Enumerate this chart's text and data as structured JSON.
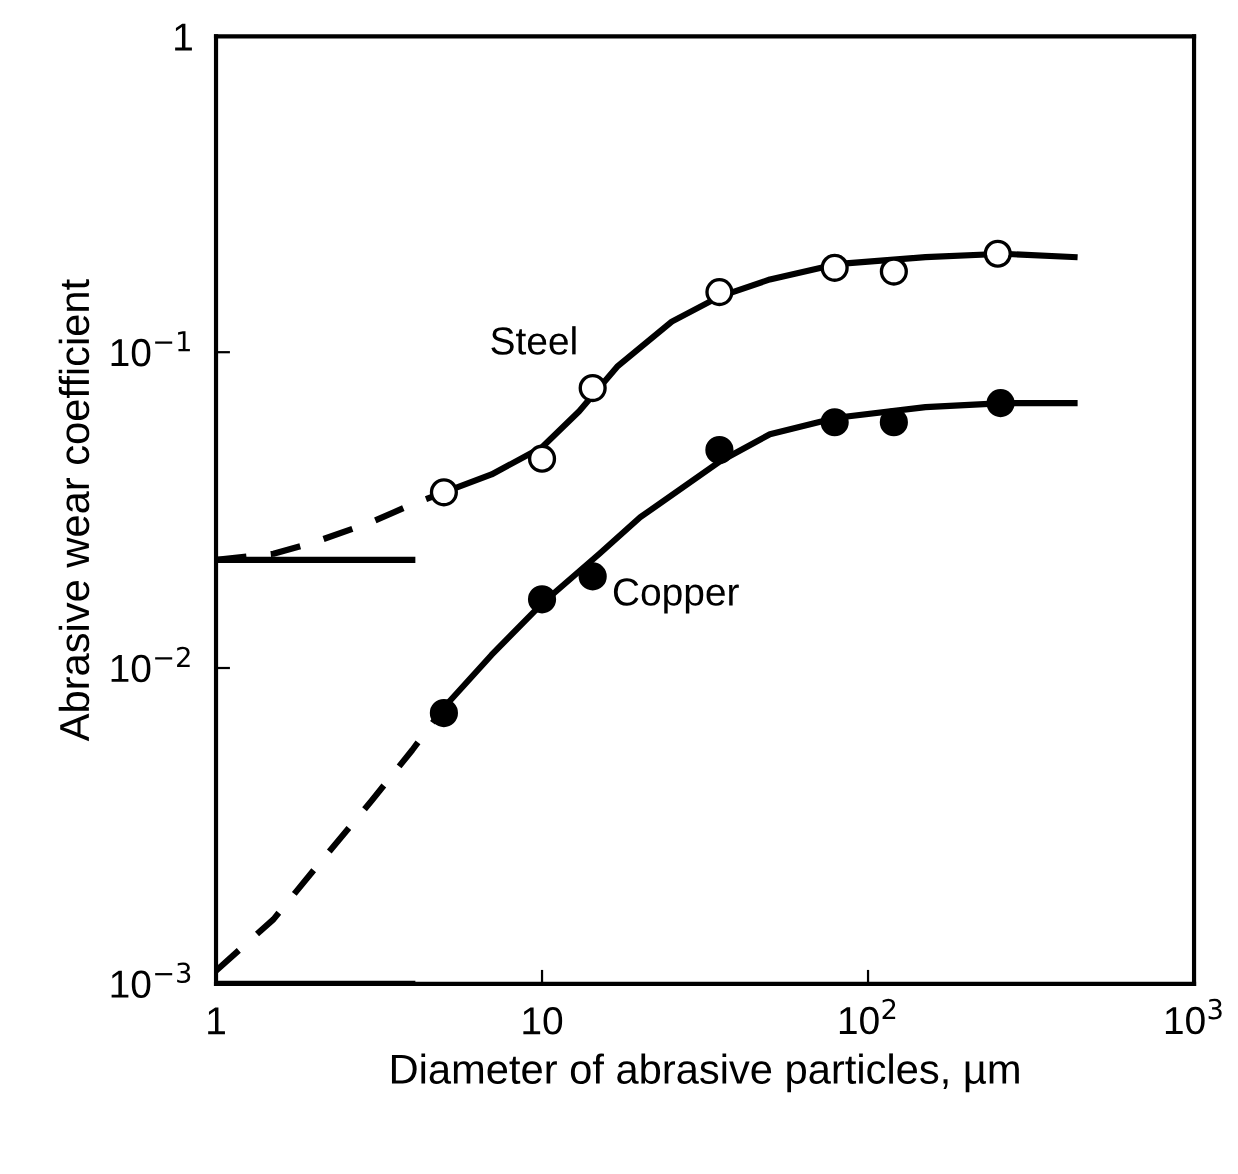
{
  "chart_data": {
    "type": "line",
    "xlabel": "Diameter of abrasive particles, µm",
    "ylabel": "Abrasive wear coefficient",
    "log": "xy",
    "xlim": [
      1,
      1000
    ],
    "ylim": [
      0.001,
      1
    ],
    "xticks": [
      1,
      10,
      {
        "value": 100,
        "label": "10$^{2}$"
      },
      {
        "value": 1000,
        "label": "10$^{3}$"
      }
    ],
    "yticks": [
      {
        "value": 0.001,
        "label": "10$^{−3}$"
      },
      {
        "value": 0.01,
        "label": "10$^{−2}$"
      },
      {
        "value": 0.1,
        "label": "10$^{−1}$"
      },
      1
    ],
    "grid": false,
    "legend": false,
    "series": [
      {
        "type": "line",
        "color": "#000000",
        "line_style": "solid",
        "marker": "none",
        "x": [
          1,
          4
        ],
        "values": [
          0.022,
          0.022
        ]
      },
      {
        "type": "line",
        "color": "#000000",
        "line_style": "solid",
        "marker": "none",
        "x": [
          1,
          4
        ],
        "values": [
          0.001,
          0.001
        ]
      },
      {
        "type": "line",
        "color": "#000000",
        "line_style": "dashed",
        "marker": "none",
        "x": [
          1,
          1.5,
          2,
          3,
          4,
          5
        ],
        "values": [
          0.022,
          0.023,
          0.025,
          0.029,
          0.033,
          0.036
        ]
      },
      {
        "type": "line",
        "color": "#000000",
        "line_style": "solid",
        "marker": "none",
        "x": [
          5,
          7,
          10,
          13,
          17,
          25,
          35,
          50,
          80,
          150,
          260,
          430
        ],
        "values": [
          0.036,
          0.041,
          0.05,
          0.065,
          0.09,
          0.125,
          0.15,
          0.17,
          0.19,
          0.2,
          0.205,
          0.2
        ]
      },
      {
        "type": "line",
        "color": "#000000",
        "line_style": "dashed",
        "marker": "none",
        "x": [
          1,
          1.5,
          2,
          3,
          4,
          5
        ],
        "values": [
          0.0011,
          0.0016,
          0.0023,
          0.0038,
          0.0055,
          0.0075
        ]
      },
      {
        "type": "line",
        "color": "#000000",
        "line_style": "solid",
        "marker": "none",
        "x": [
          5,
          7,
          10,
          15,
          20,
          35,
          50,
          80,
          150,
          260,
          430
        ],
        "values": [
          0.0075,
          0.011,
          0.016,
          0.023,
          0.03,
          0.045,
          0.055,
          0.062,
          0.067,
          0.069,
          0.069
        ]
      },
      {
        "type": "scatter",
        "color": "#ffffff",
        "marker": "circle",
        "x": [
          5,
          10,
          14.3,
          35,
          79,
          120,
          250
        ],
        "values": [
          0.036,
          0.046,
          0.077,
          0.155,
          0.185,
          0.18,
          0.205
        ]
      },
      {
        "type": "scatter",
        "color": "#000000",
        "marker": "circle",
        "x": [
          5,
          10,
          14.3,
          35,
          79,
          120,
          255
        ],
        "values": [
          0.0072,
          0.0165,
          0.0195,
          0.049,
          0.06,
          0.06,
          0.069
        ]
      }
    ],
    "annotations": [
      "Steel",
      "Copper"
    ]
  }
}
